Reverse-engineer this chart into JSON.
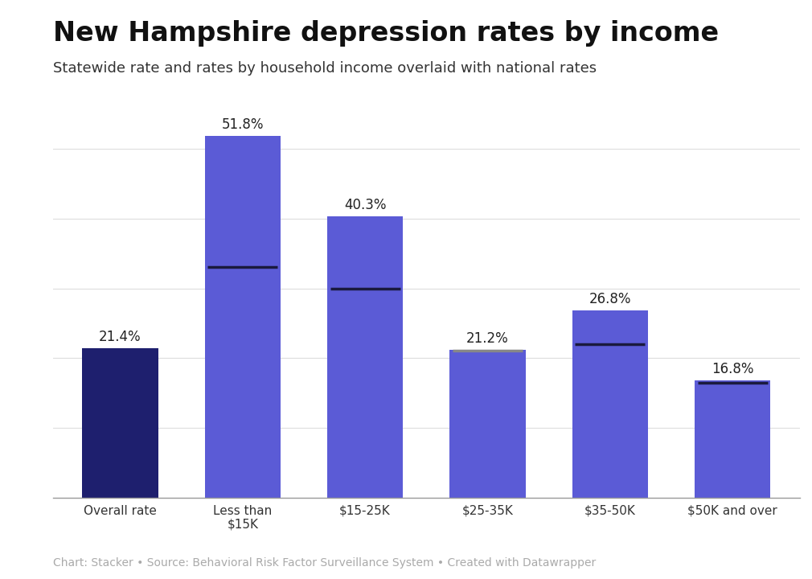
{
  "categories": [
    "Overall rate",
    "Less than\n$15K",
    "$15-25K",
    "$25-35K",
    "$35-50K",
    "$50K and over"
  ],
  "values": [
    21.4,
    51.8,
    40.3,
    21.2,
    26.8,
    16.8
  ],
  "bar_colors": [
    "#1e1f6e",
    "#5b5bd6",
    "#5b5bd6",
    "#5b5bd6",
    "#5b5bd6",
    "#5b5bd6"
  ],
  "national_rates": [
    20.8,
    33.0,
    30.0,
    21.1,
    22.0,
    16.5
  ],
  "national_line_colors": [
    "#1e1f6e",
    "#1a1a3e",
    "#1a1a3e",
    "#888888",
    "#1a1a3e",
    "#1a1a3e"
  ],
  "title": "New Hampshire depression rates by income",
  "subtitle": "Statewide rate and rates by household income overlaid with national rates",
  "footer": "Chart: Stacker • Source: Behavioral Risk Factor Surveillance System • Created with Datawrapper",
  "ylim": [
    0,
    58
  ],
  "title_fontsize": 24,
  "subtitle_fontsize": 13,
  "label_fontsize": 12,
  "tick_fontsize": 11,
  "footer_fontsize": 10,
  "grid_color": "#dddddd",
  "background_color": "#ffffff"
}
